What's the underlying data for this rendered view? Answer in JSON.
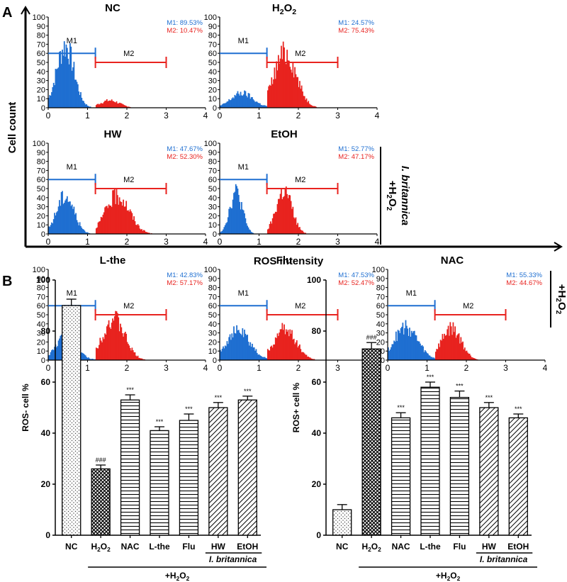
{
  "panel_a": {
    "label": "A",
    "y_axis_label": "Cell count",
    "x_axis_label": "ROS intensity",
    "histograms": [
      {
        "title": "NC",
        "m1_stat": "M1: 89.53%",
        "m2_stat": "M2: 10.47%",
        "m1_fraction": 0.8953,
        "m2_fraction": 0.1047
      },
      {
        "title": "H2O2",
        "m1_stat": "M1: 24.57%",
        "m2_stat": "M2: 75.43%",
        "m1_fraction": 0.2457,
        "m2_fraction": 0.7543
      },
      {
        "title": "HW",
        "m1_stat": "M1: 47.67%",
        "m2_stat": "M2: 52.30%",
        "m1_fraction": 0.4767,
        "m2_fraction": 0.523
      },
      {
        "title": "EtOH",
        "m1_stat": "M1: 52.77%",
        "m2_stat": "M2: 47.17%",
        "m1_fraction": 0.5277,
        "m2_fraction": 0.4717
      },
      {
        "title": "L-the",
        "m1_stat": "M1: 42.83%",
        "m2_stat": "M2: 57.17%",
        "m1_fraction": 0.4283,
        "m2_fraction": 0.5717
      },
      {
        "title": "Flu",
        "m1_stat": "M1: 47.53%",
        "m2_stat": "M2: 52.47%",
        "m1_fraction": 0.4753,
        "m2_fraction": 0.5247
      },
      {
        "title": "NAC",
        "m1_stat": "M1: 55.33%",
        "m2_stat": "M2: 44.67%",
        "m1_fraction": 0.5533,
        "m2_fraction": 0.4467
      }
    ],
    "gate_m1": "M1",
    "gate_m2": "M2",
    "x_ticks": [
      "0",
      "1",
      "2",
      "3",
      "4"
    ],
    "y_ticks": [
      "0",
      "10",
      "20",
      "30",
      "40",
      "50",
      "60",
      "70",
      "80",
      "90",
      "100"
    ],
    "bracket_row2_species": "I. britannica",
    "bracket_row2_treatment": "+H2O2",
    "bracket_row3_treatment": "+H2O2",
    "colors": {
      "m1": "#1f6fd1",
      "m2": "#e8231f"
    }
  },
  "panel_b": {
    "label": "B",
    "bottom_treatment": "+H2O2",
    "species": "I. britannica",
    "x_tick_labels": [
      "NC",
      "H2O2",
      "NAC",
      "L-the",
      "Flu",
      "HW",
      "EtOH"
    ]
  },
  "chart_data": [
    {
      "type": "bar",
      "ylabel": "ROS- cell %",
      "categories": [
        "NC",
        "H2O2",
        "NAC",
        "L-the",
        "Flu",
        "HW",
        "EtOH"
      ],
      "values": [
        90,
        26,
        53,
        41,
        45,
        50,
        53
      ],
      "errors": [
        2.5,
        1.5,
        2,
        1.5,
        2.5,
        2,
        1.5
      ],
      "significance": [
        "",
        "###",
        "***",
        "***",
        "***",
        "***",
        "***"
      ],
      "ylim": [
        0,
        100
      ],
      "yticks": [
        "0",
        "20",
        "40",
        "60",
        "80",
        "100"
      ],
      "patterns": [
        "dots",
        "crosshatch",
        "hlines",
        "hlines",
        "hlines",
        "diag",
        "diag"
      ]
    },
    {
      "type": "bar",
      "ylabel": "ROS+ cell %",
      "categories": [
        "NC",
        "H2O2",
        "NAC",
        "L-the",
        "Flu",
        "HW",
        "EtOH"
      ],
      "values": [
        10,
        73,
        46,
        58,
        54,
        50,
        46
      ],
      "errors": [
        2,
        2.5,
        2,
        2,
        2.5,
        2,
        1.5
      ],
      "significance": [
        "",
        "###",
        "***",
        "***",
        "***",
        "***",
        "***"
      ],
      "ylim": [
        0,
        100
      ],
      "yticks": [
        "0",
        "20",
        "40",
        "60",
        "80",
        "100"
      ],
      "patterns": [
        "dots",
        "crosshatch",
        "hlines",
        "hlines",
        "hlines",
        "diag",
        "diag"
      ]
    }
  ]
}
